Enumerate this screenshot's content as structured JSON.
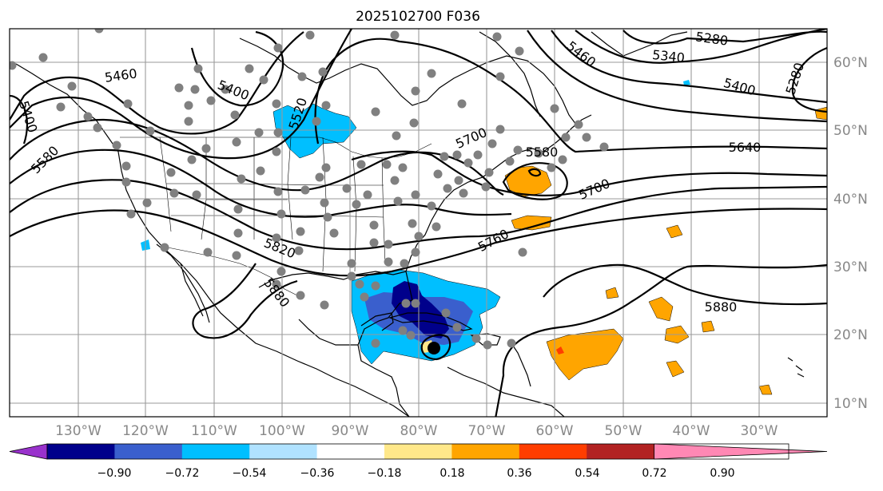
{
  "title": "2025102700 F036",
  "lon_labels": [
    "130°W",
    "120°W",
    "110°W",
    "100°W",
    "90°W",
    "80°W",
    "70°W",
    "60°W",
    "50°W",
    "40°W",
    "30°W"
  ],
  "lat_labels": [
    "60°N",
    "50°N",
    "40°N",
    "30°N",
    "20°N",
    "10°N"
  ],
  "contour_labels": [
    "5280",
    "5340",
    "5400",
    "5460",
    "5400",
    "5460",
    "5400",
    "5580",
    "5520",
    "5640",
    "5700",
    "5700",
    "5580",
    "5760",
    "5820",
    "5880",
    "5880",
    "5280"
  ],
  "colorbar": {
    "tick_labels": [
      "−0.90",
      "−0.72",
      "−0.54",
      "−0.36",
      "−0.18",
      "0.18",
      "0.36",
      "0.54",
      "0.72",
      "0.90"
    ],
    "colors": [
      "#9932cc",
      "#00008b",
      "#3a5fcd",
      "#00bfff",
      "#b0e2ff",
      "#ffffff",
      "#ffe88a",
      "#ffa500",
      "#ff3d00",
      "#b22222",
      "#ff88b4"
    ]
  },
  "fill_colors": {
    "light_blue": "#b0e2ff",
    "sky_blue": "#00bfff",
    "royal_blue": "#3a5fcd",
    "navy": "#00008b",
    "orange": "#ffa500",
    "red_orange": "#ff3d00",
    "yellow": "#ffe88a"
  }
}
